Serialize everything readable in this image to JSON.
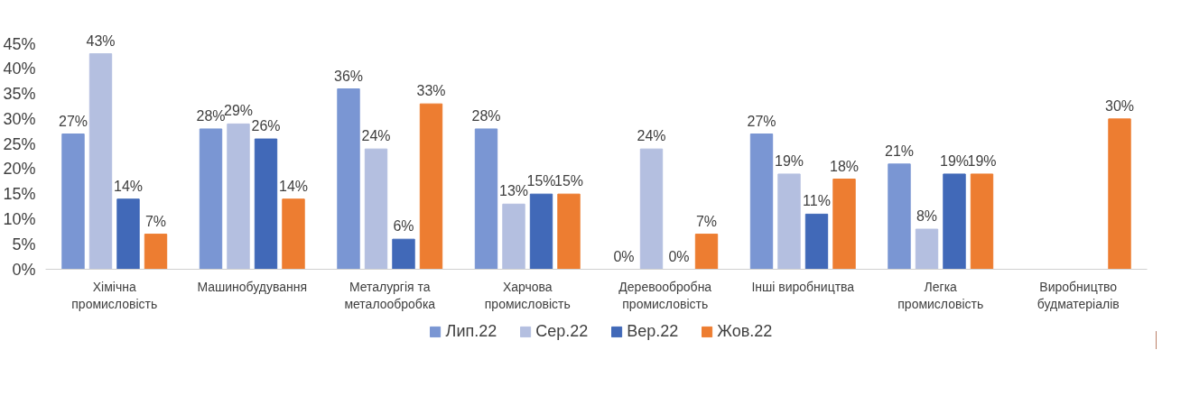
{
  "chart_data": {
    "type": "bar",
    "categories": [
      "Хімічна промисловість",
      "Машинобудування",
      "Металургія та металообробка",
      "Харчова промисловість",
      "Деревообробна промисловість",
      "Інші виробництва",
      "Легка промисловість",
      "Виробництво будматеріалів"
    ],
    "series": [
      {
        "name": "Лип.22",
        "color": "#7a96d3",
        "values": [
          27,
          28,
          36,
          28,
          0,
          27,
          21,
          null
        ]
      },
      {
        "name": "Сер.22",
        "color": "#b4bfe0",
        "values": [
          43,
          29,
          24,
          13,
          24,
          19,
          8,
          null
        ]
      },
      {
        "name": "Вер.22",
        "color": "#4169b8",
        "values": [
          14,
          26,
          6,
          15,
          0,
          11,
          19,
          null
        ]
      },
      {
        "name": "Жов.22",
        "color": "#ed7d31",
        "values": [
          7,
          14,
          33,
          15,
          7,
          18,
          19,
          30
        ]
      }
    ],
    "ylim": [
      0,
      45
    ],
    "yticks": [
      {
        "value": 0,
        "label": "0%"
      },
      {
        "value": 5,
        "label": "5%"
      },
      {
        "value": 10,
        "label": "10%"
      },
      {
        "value": 15,
        "label": "15%"
      },
      {
        "value": 20,
        "label": "20%"
      },
      {
        "value": 25,
        "label": "25%"
      },
      {
        "value": 30,
        "label": "30%"
      },
      {
        "value": 35,
        "label": "35%"
      },
      {
        "value": 40,
        "label": "40%"
      },
      {
        "value": 45,
        "label": "45%"
      }
    ],
    "value_labels": [
      [
        "27%",
        "28%",
        "36%",
        "28%",
        "0%",
        "27%",
        "21%",
        null
      ],
      [
        "43%",
        "29%",
        "24%",
        "13%",
        "24%",
        "19%",
        "8%",
        null
      ],
      [
        "14%",
        "26%",
        "6%",
        "15%",
        "0%",
        "11%",
        "19%",
        null
      ],
      [
        "7%",
        "14%",
        "33%",
        "15%",
        "7%",
        "18%",
        "19%",
        "30%"
      ]
    ],
    "grid": false,
    "legend": "bottom"
  }
}
